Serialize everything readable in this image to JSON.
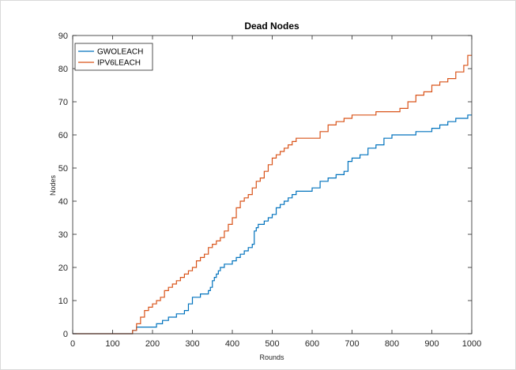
{
  "chart_data": {
    "type": "line",
    "title": "Dead Nodes",
    "xlabel": "Rounds",
    "ylabel": "Nodes",
    "xlim": [
      0,
      1000
    ],
    "ylim": [
      0,
      90
    ],
    "xticks": [
      0,
      100,
      200,
      300,
      400,
      500,
      600,
      700,
      800,
      900,
      1000
    ],
    "yticks": [
      0,
      10,
      20,
      30,
      40,
      50,
      60,
      70,
      80,
      90
    ],
    "grid": false,
    "legend_position": "top-left",
    "series": [
      {
        "name": "GWOLEACH",
        "color": "#0072bd",
        "x": [
          0,
          145,
          150,
          160,
          180,
          200,
          210,
          225,
          240,
          260,
          280,
          290,
          300,
          320,
          340,
          345,
          350,
          355,
          360,
          365,
          370,
          380,
          390,
          400,
          410,
          420,
          430,
          440,
          450,
          455,
          460,
          465,
          470,
          480,
          490,
          500,
          510,
          520,
          530,
          540,
          550,
          560,
          580,
          600,
          620,
          640,
          660,
          680,
          690,
          700,
          720,
          740,
          760,
          780,
          800,
          840,
          860,
          880,
          900,
          920,
          940,
          960,
          980,
          990,
          1000
        ],
        "y": [
          0,
          0,
          1,
          2,
          2,
          2,
          3,
          4,
          5,
          6,
          7,
          9,
          11,
          12,
          13,
          14,
          16,
          17,
          18,
          19,
          20,
          21,
          21,
          22,
          23,
          24,
          25,
          26,
          27,
          31,
          32,
          33,
          33,
          34,
          35,
          36,
          38,
          39,
          40,
          41,
          42,
          43,
          43,
          44,
          46,
          47,
          48,
          49,
          52,
          53,
          54,
          56,
          57,
          59,
          60,
          60,
          61,
          61,
          62,
          63,
          64,
          65,
          65,
          66,
          66
        ]
      },
      {
        "name": "IPV6LEACH",
        "color": "#d95319",
        "x": [
          0,
          140,
          150,
          160,
          170,
          180,
          190,
          200,
          210,
          220,
          230,
          240,
          250,
          260,
          270,
          280,
          290,
          300,
          310,
          320,
          330,
          340,
          350,
          360,
          370,
          380,
          390,
          400,
          410,
          420,
          430,
          440,
          450,
          460,
          470,
          480,
          490,
          500,
          510,
          520,
          530,
          540,
          550,
          560,
          580,
          600,
          620,
          640,
          660,
          680,
          700,
          720,
          740,
          760,
          780,
          800,
          820,
          840,
          860,
          880,
          900,
          920,
          940,
          960,
          980,
          990,
          1000
        ],
        "y": [
          0,
          0,
          1,
          3,
          5,
          7,
          8,
          9,
          10,
          11,
          13,
          14,
          15,
          16,
          17,
          18,
          19,
          20,
          22,
          23,
          24,
          26,
          27,
          28,
          29,
          31,
          33,
          35,
          38,
          40,
          41,
          42,
          44,
          46,
          47,
          49,
          51,
          53,
          54,
          55,
          56,
          57,
          58,
          59,
          59,
          59,
          61,
          63,
          64,
          65,
          66,
          66,
          66,
          67,
          67,
          67,
          68,
          70,
          72,
          73,
          75,
          76,
          77,
          79,
          81,
          84,
          84
        ]
      }
    ]
  }
}
